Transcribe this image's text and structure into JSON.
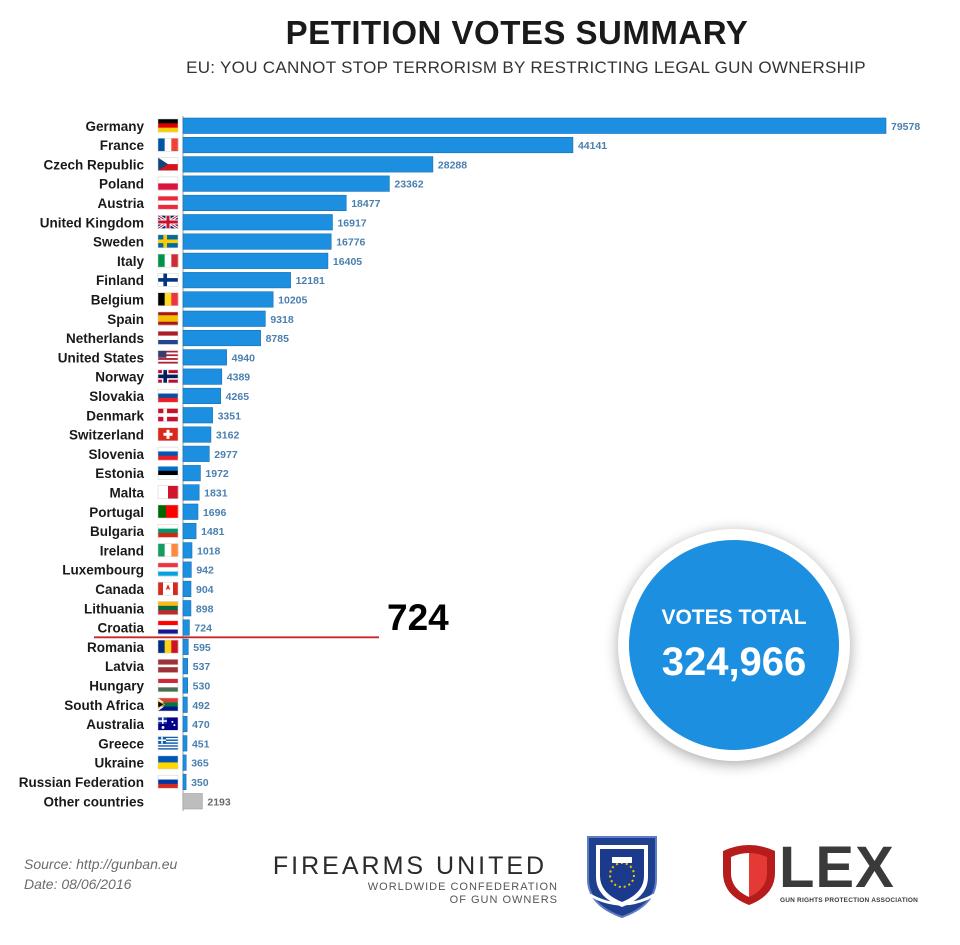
{
  "chart_data": {
    "type": "bar",
    "orientation": "horizontal",
    "title": "PETITION VOTES SUMMARY",
    "subtitle": "EU: YOU CANNOT STOP TERRORISM BY RESTRICTING LEGAL GUN OWNERSHIP",
    "categories": [
      "Germany",
      "France",
      "Czech Republic",
      "Poland",
      "Austria",
      "United Kingdom",
      "Sweden",
      "Italy",
      "Finland",
      "Belgium",
      "Spain",
      "Netherlands",
      "United States",
      "Norway",
      "Slovakia",
      "Denmark",
      "Switzerland",
      "Slovenia",
      "Estonia",
      "Malta",
      "Portugal",
      "Bulgaria",
      "Ireland",
      "Luxembourg",
      "Canada",
      "Lithuania",
      "Croatia",
      "Romania",
      "Latvia",
      "Hungary",
      "South Africa",
      "Australia",
      "Greece",
      "Ukraine",
      "Russian Federation",
      "Other countries"
    ],
    "values": [
      79578,
      44141,
      28288,
      23362,
      18477,
      16917,
      16776,
      16405,
      12181,
      10205,
      9318,
      8785,
      4940,
      4389,
      4265,
      3351,
      3162,
      2977,
      1972,
      1831,
      1696,
      1481,
      1018,
      942,
      904,
      898,
      724,
      595,
      537,
      530,
      492,
      470,
      451,
      365,
      350,
      2193
    ],
    "highlight": {
      "category": "Croatia",
      "value_label": "724",
      "color": "#c62828"
    },
    "bar_color": "#1d8fe0",
    "other_bar_color": "#bdbdbd",
    "value_label_color": "#4a7fb0",
    "grid": false,
    "legend": "none",
    "xlim": [
      0,
      79578
    ]
  },
  "flags": [
    {
      "type": "h",
      "c": [
        "#000000",
        "#dd0000",
        "#ffce00"
      ]
    },
    {
      "type": "v",
      "c": [
        "#0055a4",
        "#ffffff",
        "#ef4135"
      ]
    },
    {
      "type": "cz"
    },
    {
      "type": "h",
      "c": [
        "#ffffff",
        "#dc143c"
      ]
    },
    {
      "type": "h",
      "c": [
        "#ed2939",
        "#ffffff",
        "#ed2939"
      ]
    },
    {
      "type": "uk"
    },
    {
      "type": "nordic",
      "bg": "#006aa7",
      "cross": "#fecc00"
    },
    {
      "type": "v",
      "c": [
        "#009246",
        "#ffffff",
        "#ce2b37"
      ]
    },
    {
      "type": "nordic",
      "bg": "#ffffff",
      "cross": "#003580"
    },
    {
      "type": "v",
      "c": [
        "#000000",
        "#fdda24",
        "#ef3340"
      ]
    },
    {
      "type": "h3w",
      "c": [
        "#aa151b",
        "#f1bf00",
        "#aa151b"
      ],
      "w": [
        1,
        2,
        1
      ]
    },
    {
      "type": "h",
      "c": [
        "#ae1c28",
        "#ffffff",
        "#21468b"
      ]
    },
    {
      "type": "us"
    },
    {
      "type": "nordic",
      "bg": "#ba0c2f",
      "cross": "#00205b",
      "border": "#ffffff"
    },
    {
      "type": "h",
      "c": [
        "#ffffff",
        "#0b4ea2",
        "#ee1c25"
      ]
    },
    {
      "type": "nordic",
      "bg": "#c8102e",
      "cross": "#ffffff"
    },
    {
      "type": "swiss"
    },
    {
      "type": "h",
      "c": [
        "#ffffff",
        "#0057b8",
        "#ed1c24"
      ]
    },
    {
      "type": "h",
      "c": [
        "#0072ce",
        "#000000",
        "#ffffff"
      ]
    },
    {
      "type": "v",
      "c": [
        "#ffffff",
        "#cf142b"
      ]
    },
    {
      "type": "v3w",
      "c": [
        "#006600",
        "#ff0000"
      ],
      "w": [
        2,
        3
      ]
    },
    {
      "type": "h",
      "c": [
        "#ffffff",
        "#00966e",
        "#d62612"
      ]
    },
    {
      "type": "v",
      "c": [
        "#169b62",
        "#ffffff",
        "#ff883e"
      ]
    },
    {
      "type": "h",
      "c": [
        "#ef3340",
        "#ffffff",
        "#00a3e0"
      ]
    },
    {
      "type": "ca"
    },
    {
      "type": "h",
      "c": [
        "#fdb913",
        "#006a44",
        "#c1272d"
      ]
    },
    {
      "type": "h",
      "c": [
        "#ff0000",
        "#ffffff",
        "#171796"
      ]
    },
    {
      "type": "v",
      "c": [
        "#002b7f",
        "#fcd116",
        "#ce1126"
      ]
    },
    {
      "type": "h3w",
      "c": [
        "#9e3039",
        "#ffffff",
        "#9e3039"
      ],
      "w": [
        2,
        1,
        2
      ]
    },
    {
      "type": "h",
      "c": [
        "#ce2939",
        "#ffffff",
        "#477050"
      ]
    },
    {
      "type": "za"
    },
    {
      "type": "au"
    },
    {
      "type": "gr"
    },
    {
      "type": "h",
      "c": [
        "#0057b7",
        "#ffd700"
      ]
    },
    {
      "type": "h",
      "c": [
        "#ffffff",
        "#0039a6",
        "#d52b1e"
      ]
    },
    {
      "type": "none"
    }
  ],
  "summary": {
    "label": "VOTES TOTAL",
    "value": "324,966"
  },
  "footer": {
    "source": "Source: http://gunban.eu",
    "date": "Date: 08/06/2016"
  },
  "logos": {
    "firearms_united": {
      "name": "FIREARMS UNITED",
      "sub1": "WORLDWIDE CONFEDERATION",
      "sub2": "OF GUN OWNERS"
    },
    "lex": {
      "name": "LEX",
      "tagline": "GUN RIGHTS PROTECTION ASSOCIATION"
    }
  }
}
